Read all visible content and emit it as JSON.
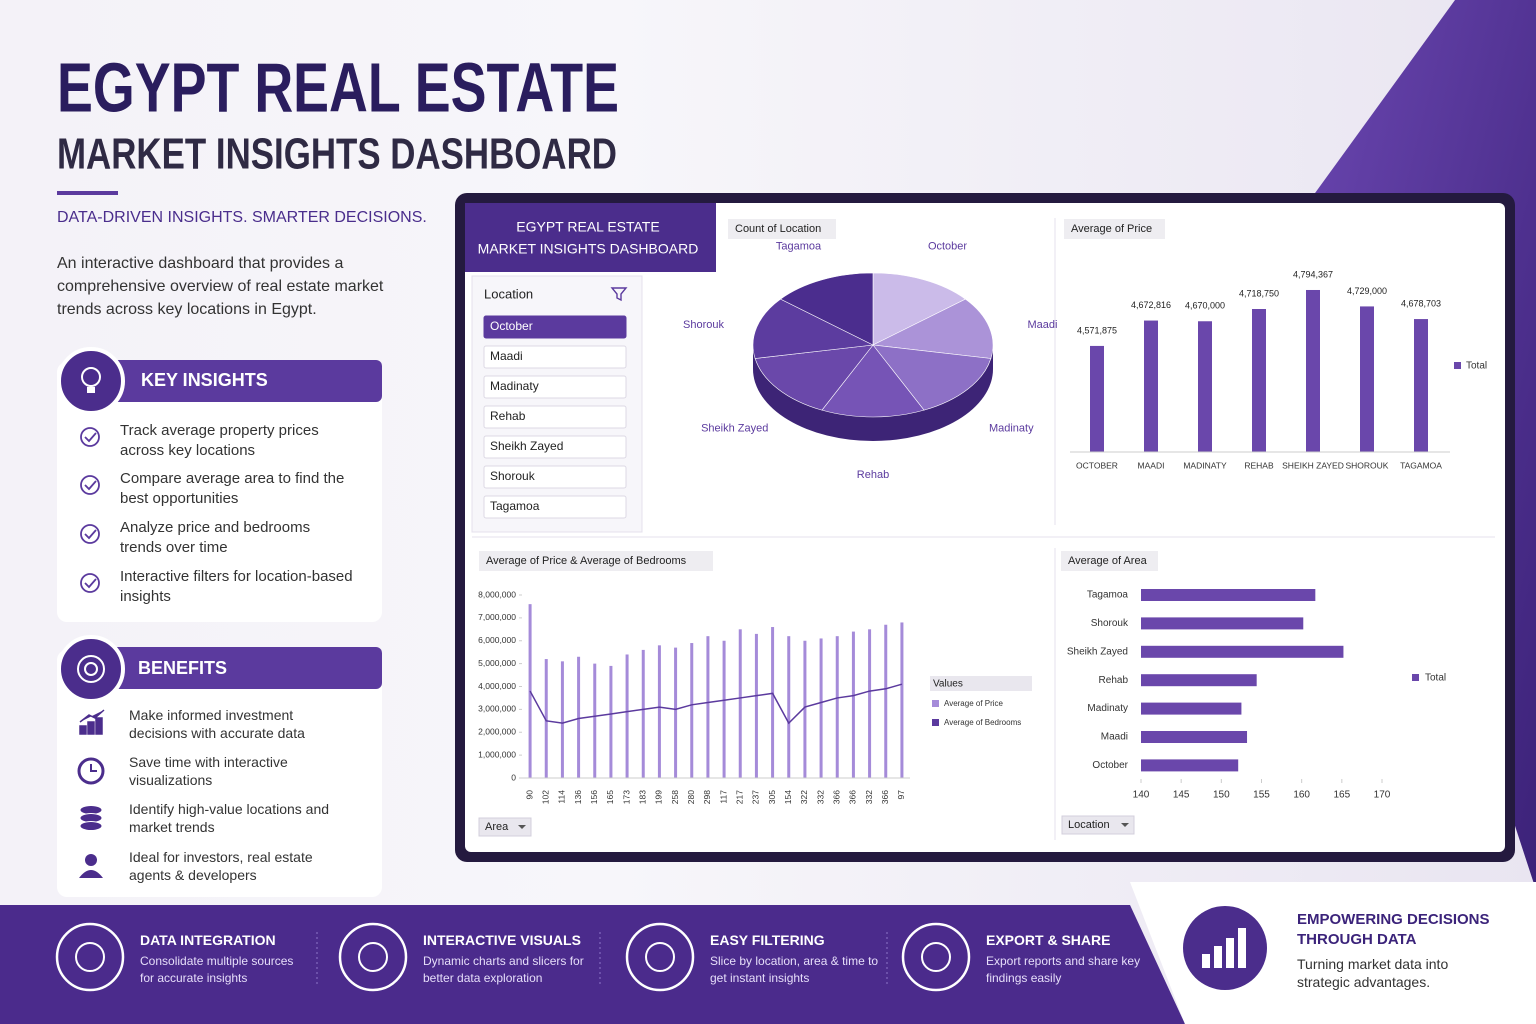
{
  "header": {
    "title": "EGYPT REAL ESTATE",
    "subtitle": "MARKET INSIGHTS DASHBOARD",
    "tagline": "DATA-DRIVEN INSIGHTS. SMARTER DECISIONS.",
    "intro": "An interactive dashboard that provides a comprehensive overview of real estate market trends across key locations in Egypt."
  },
  "key_insights": {
    "title": "KEY INSIGHTS",
    "items": [
      "Track average property prices across key locations",
      "Compare average area to find the best opportunities",
      "Analyze price and bedrooms trends over time",
      "Interactive filters for location-based insights"
    ]
  },
  "benefits": {
    "title": "BENEFITS",
    "items": [
      "Make informed investment decisions with accurate data",
      "Save time with interactive visualizations",
      "Identify high-value locations and market trends",
      "Ideal for investors, real estate agents & developers"
    ]
  },
  "dashboard": {
    "title": "EGYPT REAL ESTATE",
    "subtitle": "MARKET INSIGHTS DASHBOARD",
    "slicer": {
      "title": "Location",
      "items": [
        "October",
        "Maadi",
        "Madinaty",
        "Rehab",
        "Sheikh Zayed",
        "Shorouk",
        "Tagamoa"
      ]
    }
  },
  "chart_data": [
    {
      "type": "pie",
      "title": "Count of Location",
      "categories": [
        "October",
        "Maadi",
        "Madinaty",
        "Rehab",
        "Sheikh Zayed",
        "Shorouk",
        "Tagamoa"
      ],
      "values": [
        14,
        14,
        15,
        14,
        15,
        14,
        14
      ],
      "colors": [
        "#cbbbe9",
        "#ab93d8",
        "#8d70c6",
        "#7654b6",
        "#6a48aa",
        "#5c3c9f",
        "#4b2d8e"
      ]
    },
    {
      "type": "bar",
      "title": "Average of Price",
      "categories": [
        "OCTOBER",
        "MAADI",
        "MADINATY",
        "REHAB",
        "SHEIKH ZAYED",
        "SHOROUK",
        "TAGAMOA"
      ],
      "series": [
        {
          "name": "Total",
          "color": "#6a47ab",
          "values": [
            4571875,
            4672816,
            4670000,
            4718750,
            4794367,
            4729000,
            4678703
          ],
          "value_labels": [
            "4,571,875",
            "4,672,816",
            "4,670,000",
            "4,718,750",
            "4,794,367",
            "4,729,000",
            "4,678,703"
          ]
        }
      ],
      "ylim": [
        4150000,
        4850000
      ]
    },
    {
      "type": "combo",
      "title": "Average of Price & Average of Bedrooms",
      "field_button": "Area",
      "legend_title": "Values",
      "categories": [
        "90",
        "102",
        "114",
        "136",
        "156",
        "165",
        "173",
        "183",
        "199",
        "258",
        "280",
        "298",
        "117",
        "217",
        "237",
        "305",
        "154",
        "322",
        "332",
        "366",
        "366",
        "332",
        "366",
        "97"
      ],
      "series": [
        {
          "name": "Average of Price",
          "color": "#a58bd9",
          "values": [
            7600000,
            5200000,
            5100000,
            5300000,
            5000000,
            4900000,
            5400000,
            5600000,
            5800000,
            5700000,
            5900000,
            6200000,
            6000000,
            6500000,
            6300000,
            6600000,
            6200000,
            6000000,
            6100000,
            6200000,
            6400000,
            6500000,
            6700000,
            6800000
          ]
        },
        {
          "name": "Average of Bedrooms",
          "color": "#5b3a9e",
          "axis": "y2",
          "values": [
            3.8,
            2.5,
            2.4,
            2.6,
            2.7,
            2.8,
            2.9,
            3.0,
            3.1,
            3.0,
            3.2,
            3.3,
            3.4,
            3.5,
            3.6,
            3.7,
            2.4,
            3.1,
            3.3,
            3.5,
            3.6,
            3.8,
            3.9,
            4.1
          ]
        }
      ],
      "ylim": [
        0,
        8000000
      ],
      "yticks": [
        0,
        {
          "value": 1000000,
          "label": "1,000,000"
        },
        {
          "value": 2000000,
          "label": "2,000,000"
        },
        {
          "value": 3000000,
          "label": "3,000,000"
        },
        {
          "value": 4000000,
          "label": "4,000,000"
        },
        {
          "value": 5000000,
          "label": "5,000,000"
        },
        {
          "value": 6000000,
          "label": "6,000,000"
        },
        {
          "value": 7000000,
          "label": "7,000,000"
        },
        {
          "value": 8000000,
          "label": "8,000,000"
        }
      ],
      "y2lim": [
        0,
        8
      ]
    },
    {
      "type": "bar",
      "orientation": "horizontal",
      "title": "Average of Area",
      "field_button": "Location",
      "categories": [
        "Tagamoa",
        "Shorouk",
        "Sheikh Zayed",
        "Rehab",
        "Madinaty",
        "Maadi",
        "October"
      ],
      "series": [
        {
          "name": "Total",
          "color": "#6a47ab",
          "values": [
            161.7,
            160.2,
            165.2,
            154.4,
            152.5,
            153.2,
            152.1
          ]
        }
      ],
      "xlim": [
        140,
        170
      ],
      "xticks": [
        140,
        145,
        150,
        155,
        160,
        165,
        170
      ]
    }
  ],
  "features": [
    {
      "title": "DATA INTEGRATION",
      "text": "Consolidate multiple sources for accurate insights"
    },
    {
      "title": "INTERACTIVE VISUALS",
      "text": "Dynamic charts and slicers for better data exploration"
    },
    {
      "title": "EASY FILTERING",
      "text": "Slice by location, area & time to get instant insights"
    },
    {
      "title": "EXPORT & SHARE",
      "text": "Export reports and share key findings easily"
    }
  ],
  "callout": {
    "title": "EMPOWERING DECISIONS THROUGH DATA",
    "text": "Turning market data into strategic advantages."
  }
}
